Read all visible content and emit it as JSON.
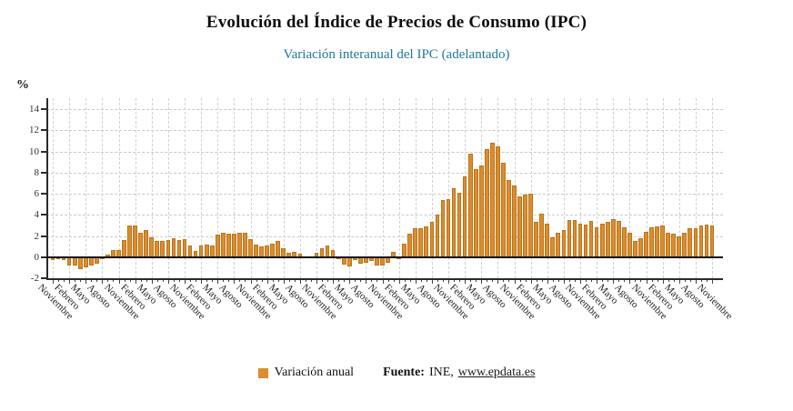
{
  "header": {
    "title": "Evolución del Índice de Precios de Consumo (IPC)",
    "subtitle": "Variación interanual del IPC (adelantado)"
  },
  "y_axis": {
    "unit_label": "%",
    "tick_labels": [
      "-2",
      "0",
      "2",
      "4",
      "6",
      "8",
      "10",
      "12",
      "14"
    ]
  },
  "legend": {
    "label": "Variación anual",
    "swatch_color": "#dc8c2e"
  },
  "source": {
    "prefix": "Fuente:",
    "name": "INE,",
    "link": "www.epdata.es"
  },
  "colors": {
    "bar_fill": "#dc8c2e",
    "bar_border": "#b9741b",
    "subtitle": "#1f7899",
    "axis": "#2b2b2b",
    "grid": "#cccccc"
  },
  "chart_data": {
    "type": "bar",
    "title": "Evolución del Índice de Precios de Consumo (IPC)",
    "subtitle": "Variación interanual del IPC (adelantado)",
    "ylabel": "%",
    "ylim": [
      -2,
      14.85
    ],
    "y_ticks": [
      -2,
      0,
      2,
      4,
      6,
      8,
      10,
      12,
      14
    ],
    "grid": true,
    "legend_position": "bottom",
    "series_name": "Variación anual",
    "label_every_n_bars": 3,
    "x_tick_labels": [
      "Noviembre",
      "Febrero",
      "Mayo",
      "Agosto",
      "Noviembre",
      "Febrero",
      "Mayo",
      "Agosto",
      "Noviembre",
      "Febrero",
      "Mayo",
      "Agosto",
      "Noviembre",
      "Febrero",
      "Mayo",
      "Agosto",
      "Noviembre",
      "Febrero",
      "Mayo",
      "Agosto",
      "Noviembre",
      "Febrero",
      "Mayo",
      "Agosto",
      "Noviembre",
      "Febrero",
      "Mayo",
      "Agosto",
      "Noviembre",
      "Febrero",
      "Mayo",
      "Agosto",
      "Noviembre",
      "Febrero",
      "Mayo",
      "Agosto",
      "Noviembre",
      "Febrero",
      "Mayo",
      "Agosto",
      "Noviembre"
    ],
    "values": [
      -0.3,
      0.0,
      -0.3,
      -0.8,
      -0.8,
      -1.1,
      -1.0,
      -0.8,
      -0.6,
      -0.1,
      0.2,
      0.7,
      0.7,
      1.6,
      3.0,
      3.0,
      2.3,
      2.6,
      1.9,
      1.5,
      1.5,
      1.6,
      1.8,
      1.6,
      1.7,
      1.1,
      0.6,
      1.1,
      1.2,
      1.1,
      2.1,
      2.3,
      2.2,
      2.2,
      2.3,
      2.3,
      1.7,
      1.2,
      1.0,
      1.1,
      1.3,
      1.5,
      0.8,
      0.4,
      0.5,
      0.3,
      0.1,
      0.1,
      0.4,
      0.8,
      1.1,
      0.7,
      0.0,
      -0.7,
      -0.9,
      -0.3,
      -0.6,
      -0.5,
      -0.4,
      -0.8,
      -0.8,
      -0.5,
      0.5,
      0.0,
      1.3,
      2.2,
      2.7,
      2.7,
      2.9,
      3.3,
      4.0,
      5.4,
      5.5,
      6.5,
      6.1,
      7.6,
      9.8,
      8.3,
      8.7,
      10.2,
      10.8,
      10.5,
      8.9,
      7.3,
      6.8,
      5.7,
      5.9,
      6.0,
      3.3,
      4.1,
      3.2,
      1.9,
      2.3,
      2.6,
      3.5,
      3.5,
      3.2,
      3.1,
      3.4,
      2.8,
      3.2,
      3.3,
      3.6,
      3.4,
      2.8,
      2.3,
      1.5,
      1.8,
      2.4,
      2.8,
      2.9,
      3.0,
      2.3,
      2.2,
      2.0,
      2.3,
      2.7,
      2.7,
      3.0,
      3.1,
      3.0
    ]
  }
}
